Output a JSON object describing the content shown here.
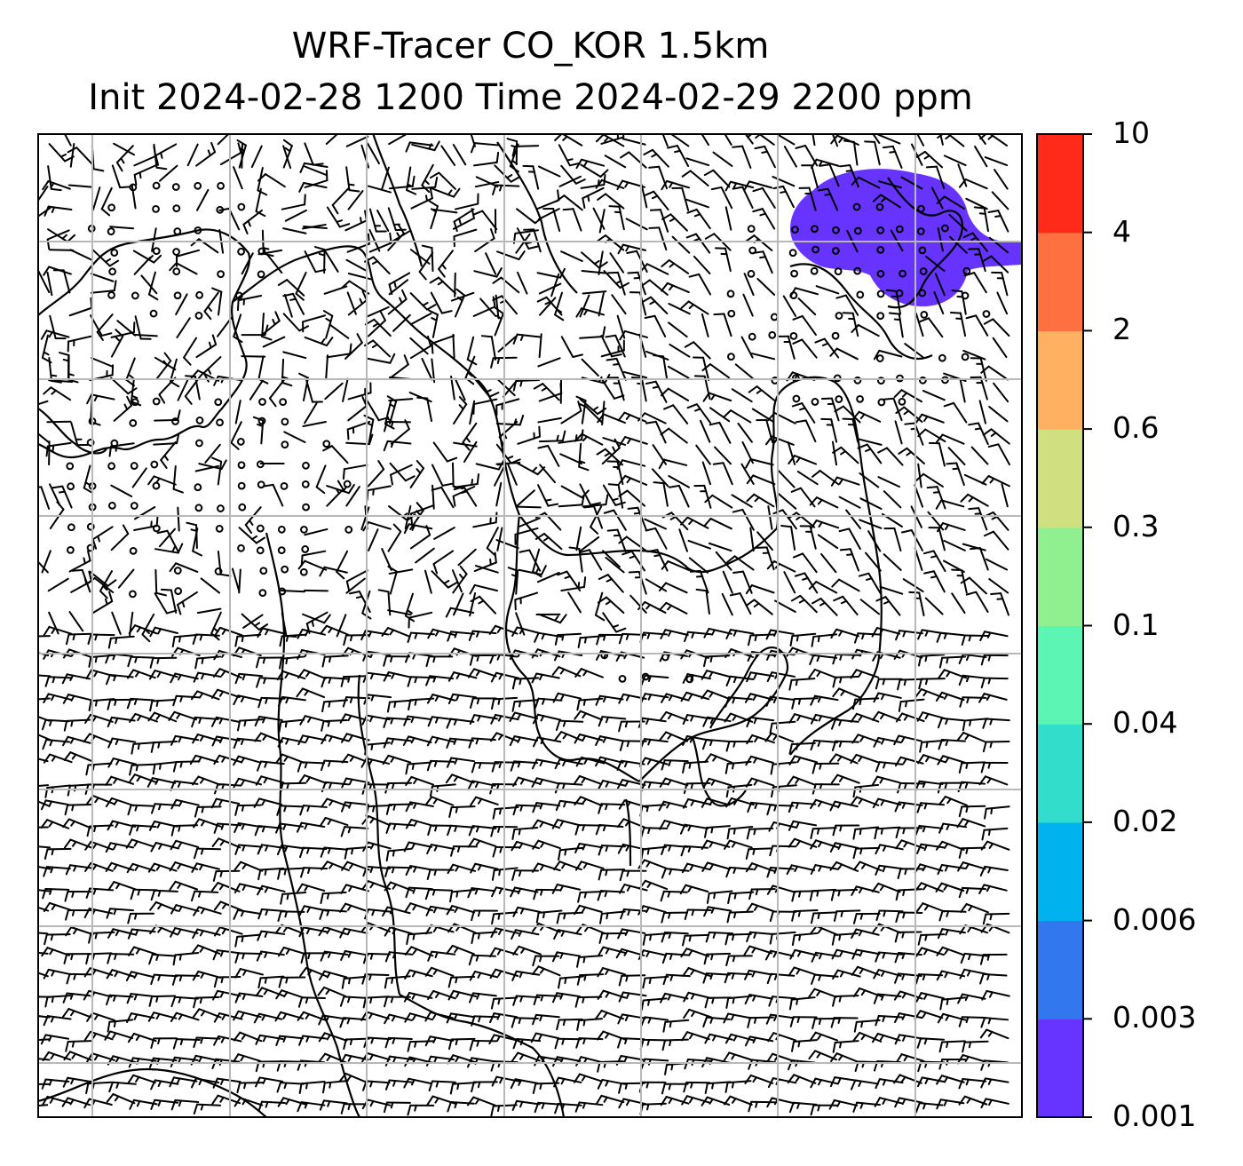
{
  "title": {
    "line1": "WRF-Tracer CO_KOR 1.5km",
    "line2": "Init 2024-02-28 1200 Time 2024-02-29 2200 ppm"
  },
  "colorbar": {
    "ticks": [
      "0.001",
      "0.003",
      "0.006",
      "0.02",
      "0.04",
      "0.1",
      "0.3",
      "0.6",
      "2",
      "4",
      "10"
    ],
    "colors": [
      "#6633ff",
      "#3377ee",
      "#00b2ee",
      "#33ddcc",
      "#5cf5b4",
      "#90f090",
      "#d0e080",
      "#ffb060",
      "#ff7040",
      "#ff2a1a"
    ]
  },
  "plume": {
    "color": "#6633ff",
    "value_range_ppm": [
      0.001,
      0.003
    ],
    "location": "top-right"
  },
  "map": {
    "grid_color": "#b8b8b8",
    "barb_color": "#000000",
    "coastline_color": "#000000"
  }
}
